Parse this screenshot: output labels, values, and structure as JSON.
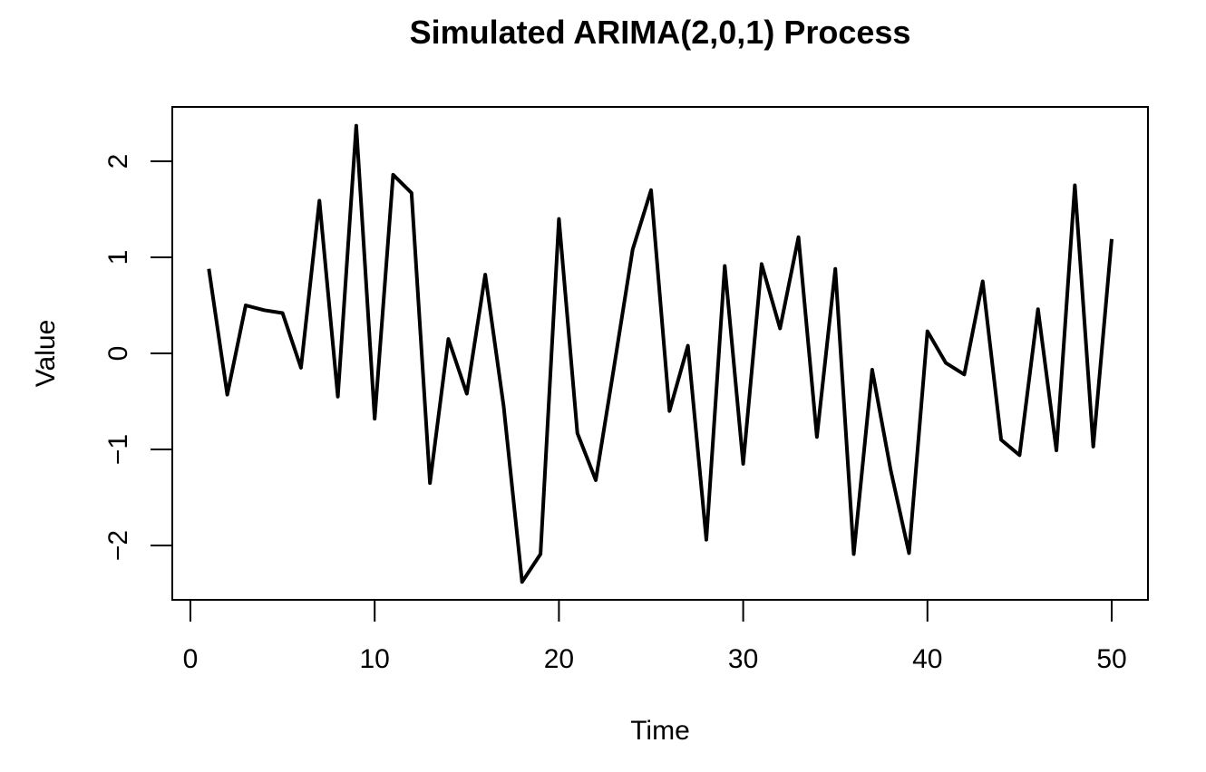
{
  "chart_data": {
    "type": "line",
    "title": "Simulated ARIMA(2,0,1) Process",
    "xlabel": "Time",
    "ylabel": "Value",
    "xlim": [
      0,
      50
    ],
    "ylim": [
      -2.5,
      2.5
    ],
    "x_ticks": [
      0,
      10,
      20,
      30,
      40,
      50
    ],
    "x_tick_labels": [
      "0",
      "10",
      "20",
      "30",
      "40",
      "50"
    ],
    "y_ticks": [
      -2,
      -1,
      0,
      1,
      2
    ],
    "y_tick_labels": [
      "−2",
      "−1",
      "0",
      "1",
      "2"
    ],
    "grid": false,
    "line_color": "#000000",
    "series": [
      {
        "x": [
          1,
          2,
          3,
          4,
          5,
          6,
          7,
          8,
          9,
          10,
          11,
          12,
          13,
          14,
          15,
          16,
          17,
          18,
          19,
          20,
          21,
          22,
          23,
          24,
          25,
          26,
          27,
          28,
          29,
          30,
          31,
          32,
          33,
          34,
          35,
          36,
          37,
          38,
          39,
          40,
          41,
          42,
          43,
          44,
          45,
          46,
          47,
          48,
          49,
          50
        ],
        "values": [
          0.88,
          -0.43,
          0.5,
          0.45,
          0.42,
          -0.15,
          1.59,
          -0.45,
          2.37,
          -0.68,
          1.86,
          1.67,
          -1.35,
          0.15,
          -0.42,
          0.82,
          -0.55,
          -2.38,
          -2.09,
          1.4,
          -0.83,
          -1.32,
          -0.13,
          1.08,
          1.7,
          -0.6,
          0.08,
          -1.94,
          0.91,
          -1.15,
          0.93,
          0.26,
          1.21,
          -0.87,
          0.88,
          -2.09,
          -0.17,
          -1.21,
          -2.08,
          0.23,
          -0.1,
          -0.22,
          0.75,
          -0.9,
          -1.06,
          0.46,
          -1.01,
          1.75,
          -0.97,
          1.19
        ]
      }
    ]
  }
}
